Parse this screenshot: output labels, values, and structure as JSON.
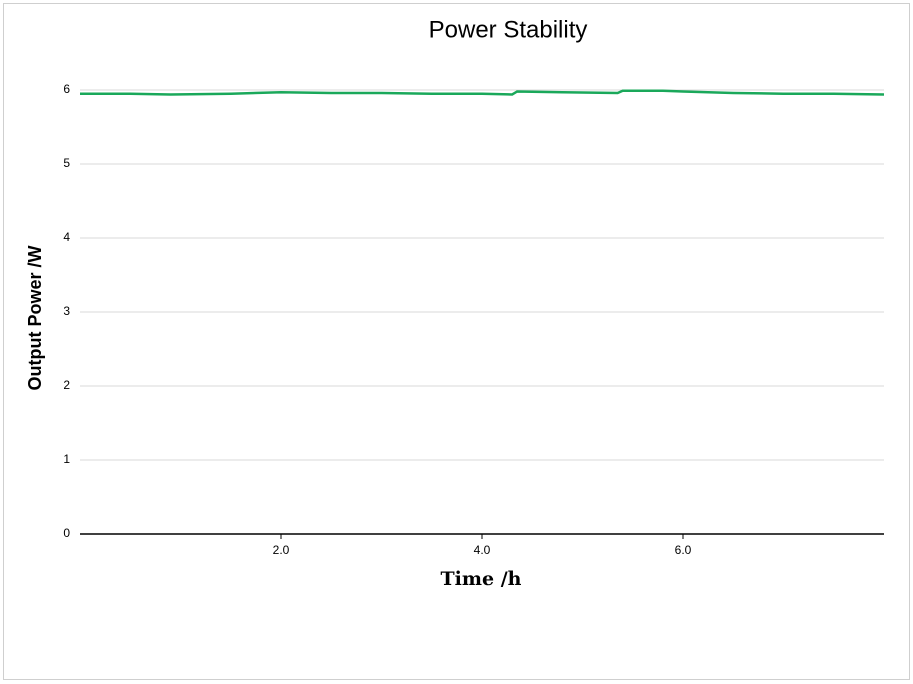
{
  "chart_data": {
    "type": "line",
    "title": "Power Stability",
    "x_label": "Time /h",
    "y_label": "Output Power /W",
    "x": [
      0,
      0.5,
      0.9,
      1.5,
      2.0,
      2.5,
      3.0,
      3.5,
      4.0,
      4.3,
      4.35,
      4.8,
      5.35,
      5.4,
      5.8,
      6.0,
      6.5,
      7.0,
      7.5,
      8.0
    ],
    "values": [
      5.95,
      5.95,
      5.94,
      5.95,
      5.97,
      5.96,
      5.96,
      5.95,
      5.95,
      5.94,
      5.98,
      5.97,
      5.96,
      5.99,
      5.99,
      5.98,
      5.96,
      5.95,
      5.95,
      5.94
    ],
    "color": "#1aa85a",
    "xlim": [
      0,
      8
    ],
    "xticks": [
      {
        "value": 2,
        "label": "2.0"
      },
      {
        "value": 4,
        "label": "4.0"
      },
      {
        "value": 6,
        "label": "6.0"
      }
    ],
    "ylim": [
      0,
      6
    ],
    "yticks": [
      0,
      1,
      2,
      3,
      4,
      5,
      6
    ],
    "grid": true
  }
}
